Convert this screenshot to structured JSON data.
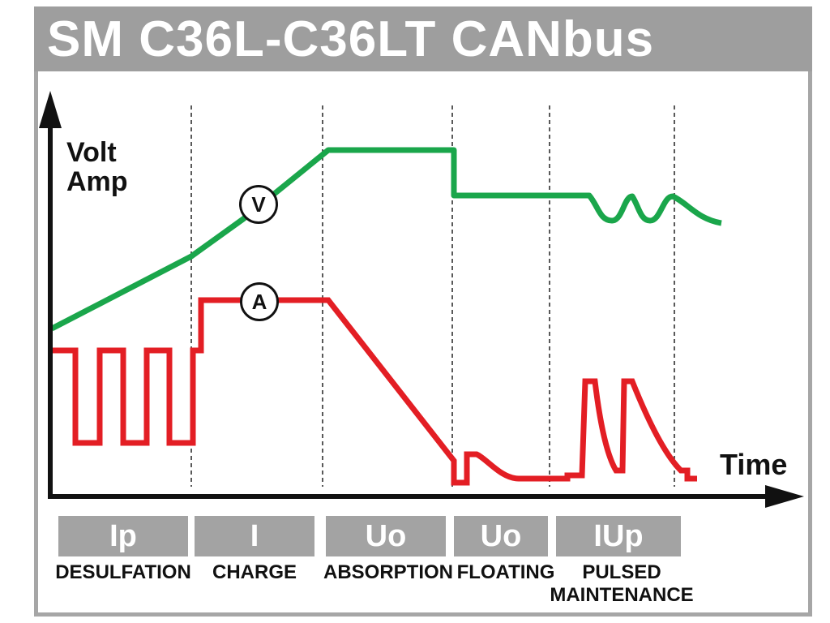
{
  "title": "SM C36L-C36LT CANbus",
  "axes": {
    "y_label_1": "Volt",
    "y_label_2": "Amp",
    "x_label": "Time"
  },
  "markers": {
    "voltage": "V",
    "current": "A"
  },
  "phases": [
    {
      "code": "Ip",
      "name": "DESULFATION"
    },
    {
      "code": "I",
      "name": "CHARGE"
    },
    {
      "code": "Uo",
      "name": "ABSORPTION"
    },
    {
      "code": "Uo",
      "name": "FLOATING"
    },
    {
      "code": "IUp",
      "name": "PULSED\nMAINTENANCE"
    }
  ],
  "colors": {
    "voltage_line": "#1aa64b",
    "current_line": "#e31e24",
    "header": "#9e9e9e",
    "phase_box": "#a3a3a3"
  }
}
